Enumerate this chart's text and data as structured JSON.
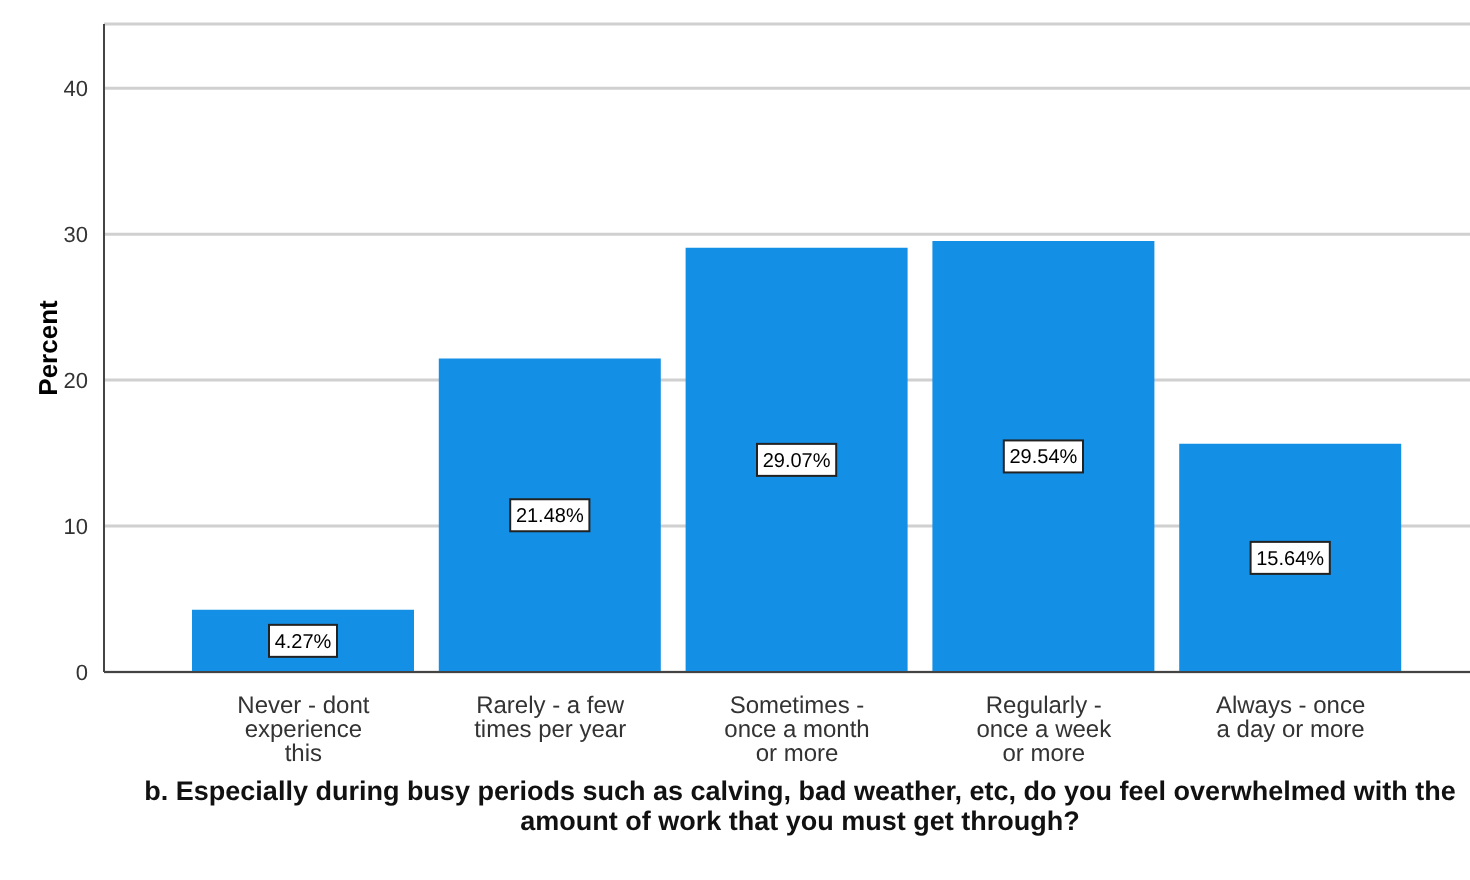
{
  "chart_data": {
    "type": "bar",
    "xlabel": "b. Especially during busy periods such as calving, bad weather, etc, do you feel overwhelmed with the amount of work that you must get through?",
    "ylabel": "Percent",
    "categories": [
      "Never - dont experience this",
      "Rarely - a few times per year",
      "Sometimes - once a month or more",
      "Regularly - once a week or more",
      "Always - once a day or more"
    ],
    "values": [
      4.27,
      21.48,
      29.07,
      29.54,
      15.64
    ],
    "value_labels": [
      "4.27%",
      "21.48%",
      "29.07%",
      "29.54%",
      "15.64%"
    ],
    "color": "#1390e6",
    "ylim": [
      0,
      44.4
    ],
    "yticks": [
      0,
      10,
      20,
      30,
      40
    ],
    "grid": "y"
  }
}
